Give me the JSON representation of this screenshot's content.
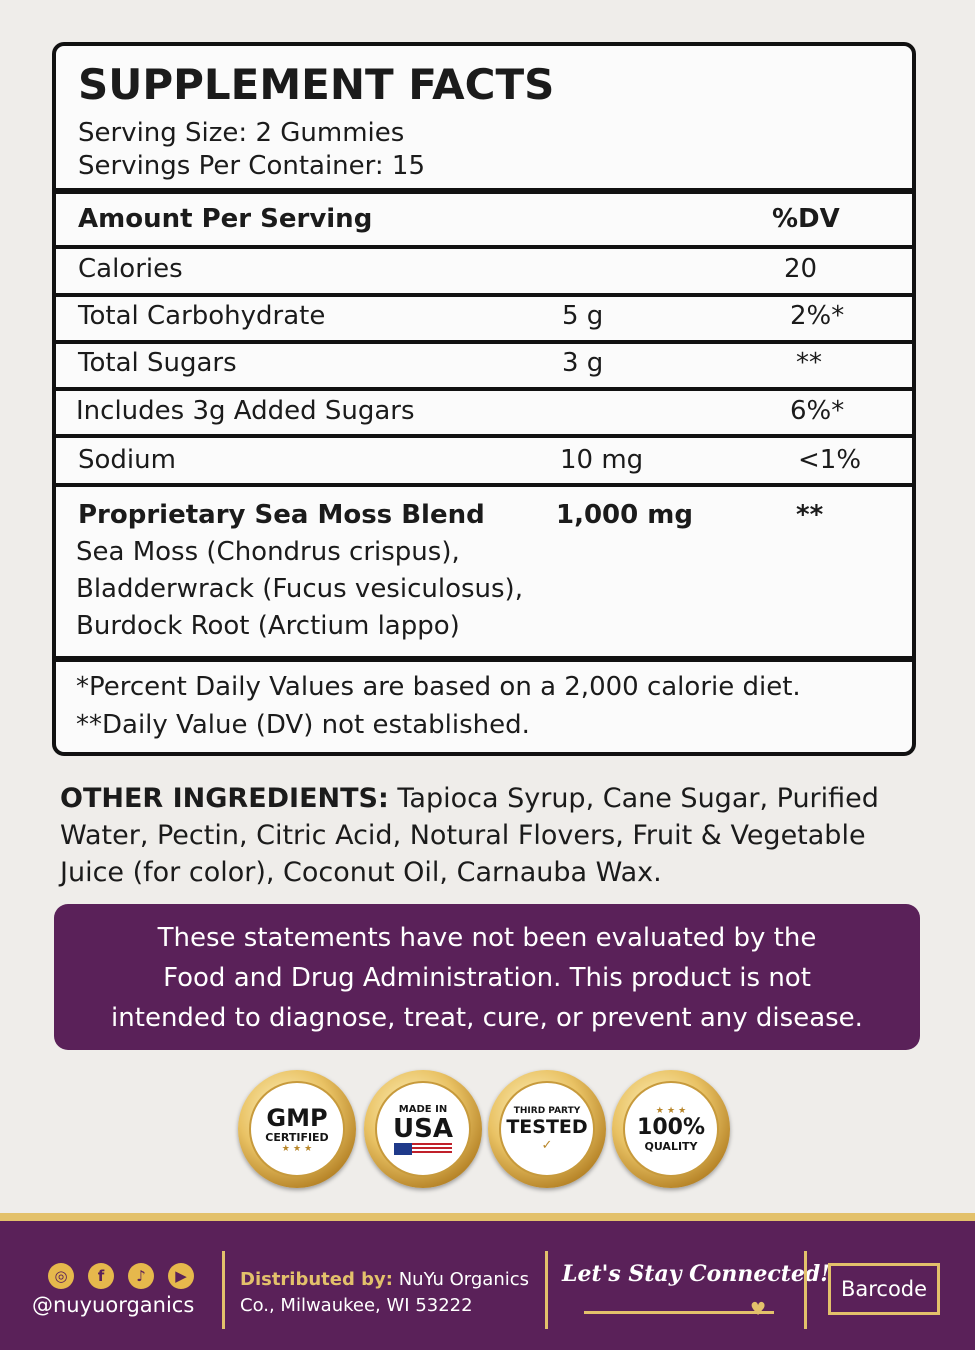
{
  "facts": {
    "title": "SUPPLEMENT FACTS",
    "serving_size": "Serving Size: 2 Gummies",
    "servings_per_container": "Servings Per Container: 15",
    "header": {
      "label": "Amount Per Serving",
      "dv": "%DV"
    },
    "rows": [
      {
        "label": "Calories",
        "amount": "",
        "dv": "20"
      },
      {
        "label": "Total Carbohydrate",
        "amount": "5 g",
        "dv": "2%*"
      },
      {
        "label": "Total Sugars",
        "amount": "3 g",
        "dv": "**"
      },
      {
        "label": "Includes 3g Added Sugars",
        "amount": "",
        "dv": "6%*"
      },
      {
        "label": "Sodium",
        "amount": "10 mg",
        "dv": "<1%"
      }
    ],
    "blend": {
      "label": "Proprietary Sea Moss Blend",
      "amount": "1,000 mg",
      "dv": "**",
      "ingredients": [
        "Sea Moss (Chondrus crispus),",
        "Bladderwrack (Fucus vesiculosus),",
        "Burdock Root (Arctium lappo)"
      ]
    },
    "footnotes": [
      "*Percent Daily Values are based on a 2,000 calorie diet.",
      "**Daily Value (DV) not established."
    ]
  },
  "other_ingredients": {
    "label": "OTHER INGREDIENTS:",
    "text": " Tapioca Syrup, Cane Sugar, Purified Water, Pectin, Citric Acid, Notural Flovers, Fruit & Vegetable Juice (for color), Coconut Oil, Carnauba Wax."
  },
  "notice": {
    "lines": [
      "These statements have not been evaluated by the",
      "Food and Drug Administration. This product is not",
      "intended to diagnose, treat, cure, or prevent any disease."
    ]
  },
  "badges": [
    {
      "name": "gmp",
      "top": "GMP",
      "bottom": "CERTIFIED"
    },
    {
      "name": "usa",
      "top": "MADE IN",
      "bottom": "USA"
    },
    {
      "name": "tested",
      "top": "THIRD PARTY",
      "bottom": "TESTED"
    },
    {
      "name": "quality",
      "top": "100%",
      "bottom": "QUALITY"
    }
  ],
  "footer": {
    "social_icons": [
      "instagram-icon",
      "facebook-icon",
      "tiktok-icon",
      "youtube-icon"
    ],
    "handle": "@nuyuorganics",
    "distributed_label": "Distributed by:",
    "distributed_text_1": " NuYu Organics",
    "distributed_text_2": "Co., Milwaukee, WI 53222",
    "tagline": "Let's Stay Connected!",
    "barcode": "Barcode"
  },
  "colors": {
    "purple": "#5a2159",
    "gold": "#e3c16b",
    "background": "#efedea"
  }
}
